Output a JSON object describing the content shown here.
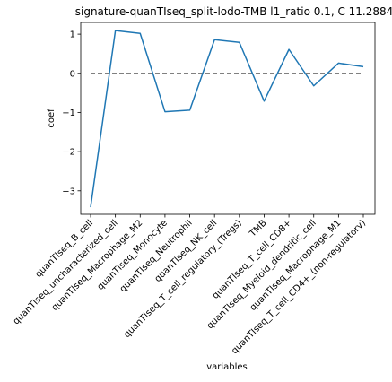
{
  "chart_data": {
    "type": "line",
    "title": "signature-quanTIseq_split-lodo-TMB l1_ratio 0.1, C 11.2884",
    "xlabel": "variables",
    "ylabel": "coef",
    "categories": [
      "quanTIseq_B_cell",
      "quanTIseq_uncharacterized_cell",
      "quanTIseq_Macrophage_M2",
      "quanTIseq_Monocyte",
      "quanTIseq_Neutrophil",
      "quanTIseq_NK_cell",
      "quanTIseq_T_cell_regulatory_(Tregs)",
      "TMB",
      "quanTIseq_T_cell_CD8+",
      "quanTIseq_Myeloid_dendritic_cell",
      "quanTIseq_Macrophage_M1",
      "quanTIseq_T_cell_CD4+_(non-regulatory)"
    ],
    "series": [
      {
        "values": [
          -3.42,
          1.09,
          1.02,
          -0.98,
          -0.94,
          0.86,
          0.79,
          -0.71,
          0.61,
          -0.32,
          0.26,
          0.17
        ],
        "color": "#1f77b4"
      }
    ],
    "reference_line": {
      "y": 0,
      "style": "dashed",
      "color": "#808080"
    },
    "ylim": [
      -3.6,
      1.3
    ],
    "yticks": [
      1,
      0,
      -1,
      -2,
      -3
    ],
    "ytick_labels": [
      "1",
      "0",
      "−1",
      "−2",
      "−3"
    ],
    "grid": false,
    "legend": "none"
  }
}
